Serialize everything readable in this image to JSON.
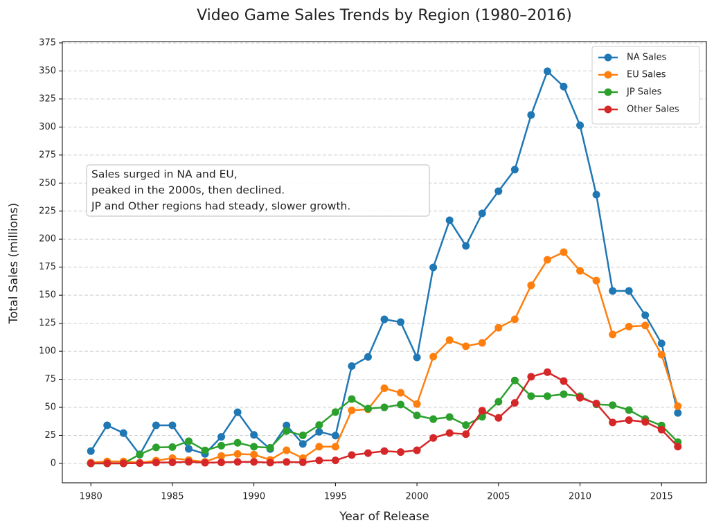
{
  "chart_data": {
    "type": "line",
    "title": "Video Game Sales Trends by Region (1980–2016)",
    "x_label": "Year of Release",
    "y_label": "Total Sales (millions)",
    "annotation": [
      "Sales surged in NA and EU,",
      "peaked in the 2000s, then declined.",
      "JP and Other regions had steady, slower growth."
    ],
    "x": [
      1980,
      1981,
      1982,
      1983,
      1984,
      1985,
      1986,
      1987,
      1988,
      1989,
      1990,
      1991,
      1992,
      1993,
      1994,
      1995,
      1996,
      1997,
      1998,
      1999,
      2000,
      2001,
      2002,
      2003,
      2004,
      2005,
      2006,
      2007,
      2008,
      2009,
      2010,
      2011,
      2012,
      2013,
      2014,
      2015,
      2016
    ],
    "series": [
      {
        "name": "NA Sales",
        "color": "#1f77b4",
        "values": [
          11,
          34,
          27,
          7.8,
          34,
          34,
          13,
          8.5,
          23.7,
          45.6,
          25.5,
          12.8,
          33.9,
          17.4,
          28.2,
          24.8,
          86.8,
          95,
          128.5,
          126,
          94.5,
          174.8,
          216.8,
          194,
          223,
          242.8,
          262,
          310.7,
          349.7,
          336,
          301.5,
          239.7,
          153.8,
          153.8,
          132.2,
          107,
          45
        ]
      },
      {
        "name": "EU Sales",
        "color": "#ff7f0e",
        "values": [
          0.7,
          1.8,
          1.8,
          0.6,
          2.5,
          4.7,
          3,
          1.4,
          6.6,
          8.4,
          7.9,
          3.2,
          11.7,
          4.7,
          14.9,
          14.9,
          47.3,
          48.3,
          67,
          63,
          53,
          95.2,
          110,
          104.5,
          107.5,
          121,
          128.5,
          158.8,
          181.6,
          188.4,
          171.7,
          163,
          115,
          122,
          123,
          97,
          51
        ]
      },
      {
        "name": "JP Sales",
        "color": "#2ca02c",
        "values": [
          0,
          0,
          0,
          8.1,
          14.3,
          14.6,
          19.8,
          11.6,
          15.8,
          18.4,
          14.9,
          14,
          28.9,
          25,
          34.2,
          45.8,
          57.4,
          48.9,
          50,
          52.5,
          42.8,
          39.5,
          41.4,
          34.2,
          41.6,
          55,
          74,
          60,
          60,
          61.8,
          59.9,
          52.7,
          52,
          47.6,
          39.6,
          33.8,
          19
        ]
      },
      {
        "name": "Other Sales",
        "color": "#d62728",
        "values": [
          0.1,
          0.1,
          0.1,
          0.2,
          0.8,
          0.9,
          1.5,
          0.6,
          0.9,
          1.4,
          1.4,
          0.7,
          1.3,
          1,
          2.6,
          2.7,
          7.5,
          9.2,
          11,
          10.1,
          11.7,
          22.7,
          27.1,
          26.1,
          47,
          40.6,
          54,
          77.3,
          81.4,
          73.4,
          58.5,
          53.4,
          36.5,
          38.6,
          37,
          30.1,
          15
        ]
      }
    ],
    "xlim": [
      1978.25,
      2017.75
    ],
    "xticks": [
      1980,
      1985,
      1990,
      1995,
      2000,
      2005,
      2010,
      2015
    ],
    "ylim": [
      -17.3,
      376.2
    ],
    "yticks": [
      0,
      25,
      50,
      75,
      100,
      125,
      150,
      175,
      200,
      225,
      250,
      275,
      300,
      325,
      350,
      375
    ],
    "grid": true,
    "legend": "upper right"
  }
}
